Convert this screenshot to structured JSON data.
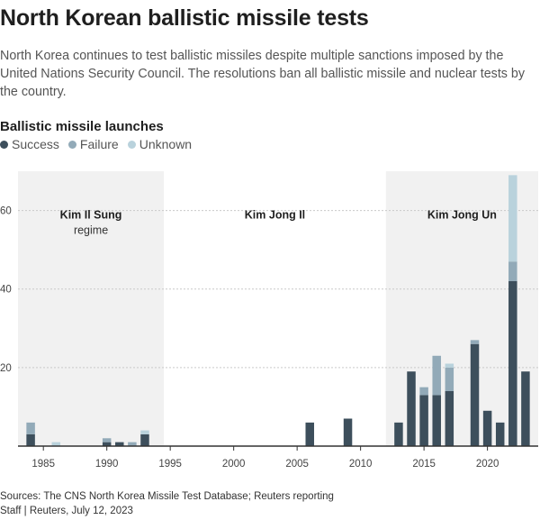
{
  "header": {
    "title": "North Korean ballistic missile tests",
    "subtitle": "North Korea continues to test ballistic missiles despite multiple sanctions imposed by the United Nations Security Council. The resolutions ban all ballistic missile and nuclear tests by the country."
  },
  "chart_data": {
    "type": "bar",
    "stacked": true,
    "title": "Ballistic missile launches",
    "xlabel": "",
    "ylabel": "",
    "xlim": [
      1983,
      2024
    ],
    "ylim": [
      0,
      70
    ],
    "x_ticks": [
      1985,
      1990,
      1995,
      2000,
      2005,
      2010,
      2015,
      2020
    ],
    "y_ticks": [
      20,
      40,
      60
    ],
    "grid": true,
    "legend_position": "top-left",
    "series": [
      {
        "name": "Success",
        "color": "#3d4f5c",
        "x": [
          1984,
          1990,
          1991,
          1993,
          2006,
          2009,
          2013,
          2014,
          2015,
          2016,
          2017,
          2019,
          2020,
          2021,
          2022,
          2023
        ],
        "values": [
          3,
          1,
          1,
          3,
          6,
          7,
          6,
          19,
          13,
          13,
          14,
          26,
          9,
          6,
          42,
          19
        ]
      },
      {
        "name": "Failure",
        "color": "#92aab8",
        "x": [
          1984,
          1990,
          1992,
          1993,
          2015,
          2016,
          2017,
          2019,
          2022
        ],
        "values": [
          3,
          1,
          1,
          0,
          2,
          10,
          6,
          1,
          5
        ]
      },
      {
        "name": "Unknown",
        "color": "#b9d2dc",
        "x": [
          1986,
          1992,
          1993,
          2017,
          2022
        ],
        "values": [
          1,
          0,
          1,
          1,
          22
        ]
      }
    ],
    "regimes": [
      {
        "name": "Kim Il Sung",
        "sub": "regime",
        "start": 1983,
        "end": 1994.5,
        "shaded": true
      },
      {
        "name": "Kim Jong Il",
        "sub": "",
        "start": 1994.5,
        "end": 2012,
        "shaded": false
      },
      {
        "name": "Kim Jong Un",
        "sub": "",
        "start": 2012,
        "end": 2024,
        "shaded": true
      }
    ]
  },
  "footer": {
    "sources": "Sources: The CNS North Korea Missile Test Database; Reuters reporting",
    "credit": "Staff | Reuters, July 12, 2023"
  }
}
